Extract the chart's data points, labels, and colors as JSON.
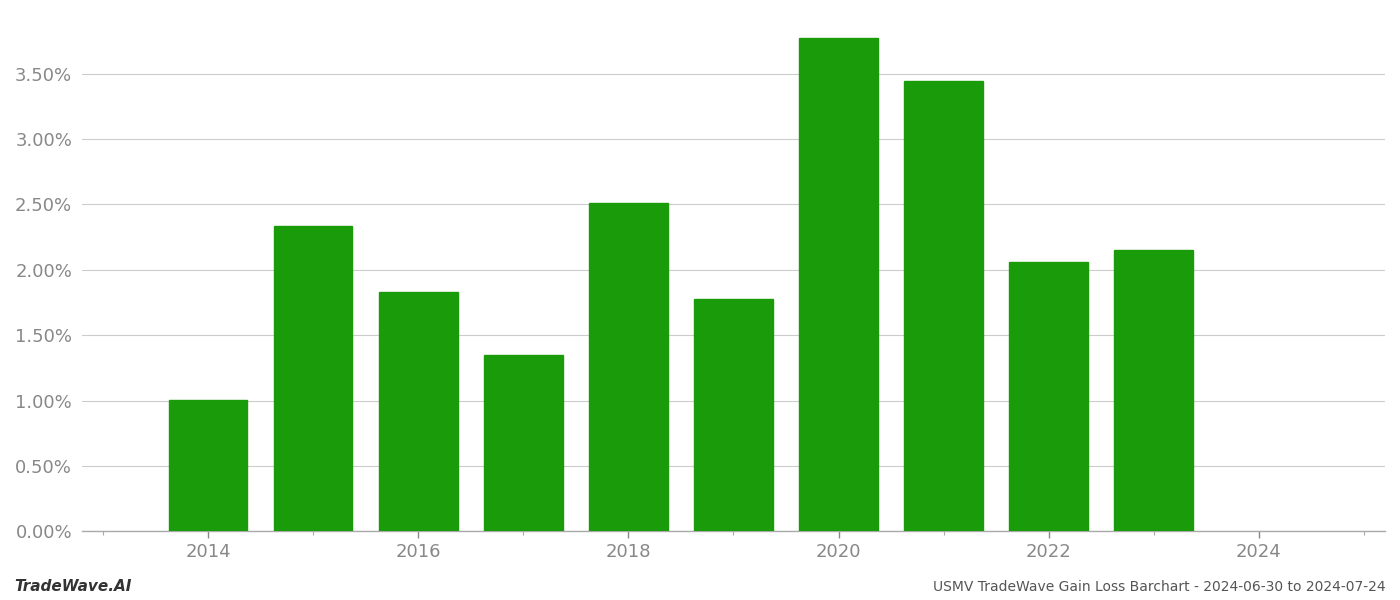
{
  "years": [
    2014,
    2015,
    2016,
    2017,
    2018,
    2019,
    2020,
    2021,
    2022,
    2023
  ],
  "values": [
    0.01003,
    0.02332,
    0.01833,
    0.01348,
    0.02512,
    0.01778,
    0.03773,
    0.03442,
    0.02058,
    0.02152
  ],
  "bar_color": "#1a9b0a",
  "background_color": "#ffffff",
  "grid_color": "#cccccc",
  "axis_color": "#aaaaaa",
  "tick_color": "#888888",
  "ylim": [
    0.0,
    0.0395
  ],
  "yticks": [
    0.0,
    0.005,
    0.01,
    0.015,
    0.02,
    0.025,
    0.03,
    0.035
  ],
  "ytick_labels": [
    "0.00%",
    "0.50%",
    "1.00%",
    "1.50%",
    "2.00%",
    "2.50%",
    "3.00%",
    "3.50%"
  ],
  "xtick_labels_major": [
    "2014",
    "2016",
    "2018",
    "2020",
    "2022",
    "2024"
  ],
  "xticks_major": [
    2014,
    2016,
    2018,
    2020,
    2022,
    2024
  ],
  "xticks_minor": [
    2013,
    2014,
    2015,
    2016,
    2017,
    2018,
    2019,
    2020,
    2021,
    2022,
    2023,
    2024,
    2025
  ],
  "footer_left": "TradeWave.AI",
  "footer_right": "USMV TradeWave Gain Loss Barchart - 2024-06-30 to 2024-07-24",
  "bar_width": 0.75,
  "xlim": [
    2012.8,
    2025.2
  ],
  "figsize": [
    14.0,
    6.0
  ],
  "dpi": 100
}
